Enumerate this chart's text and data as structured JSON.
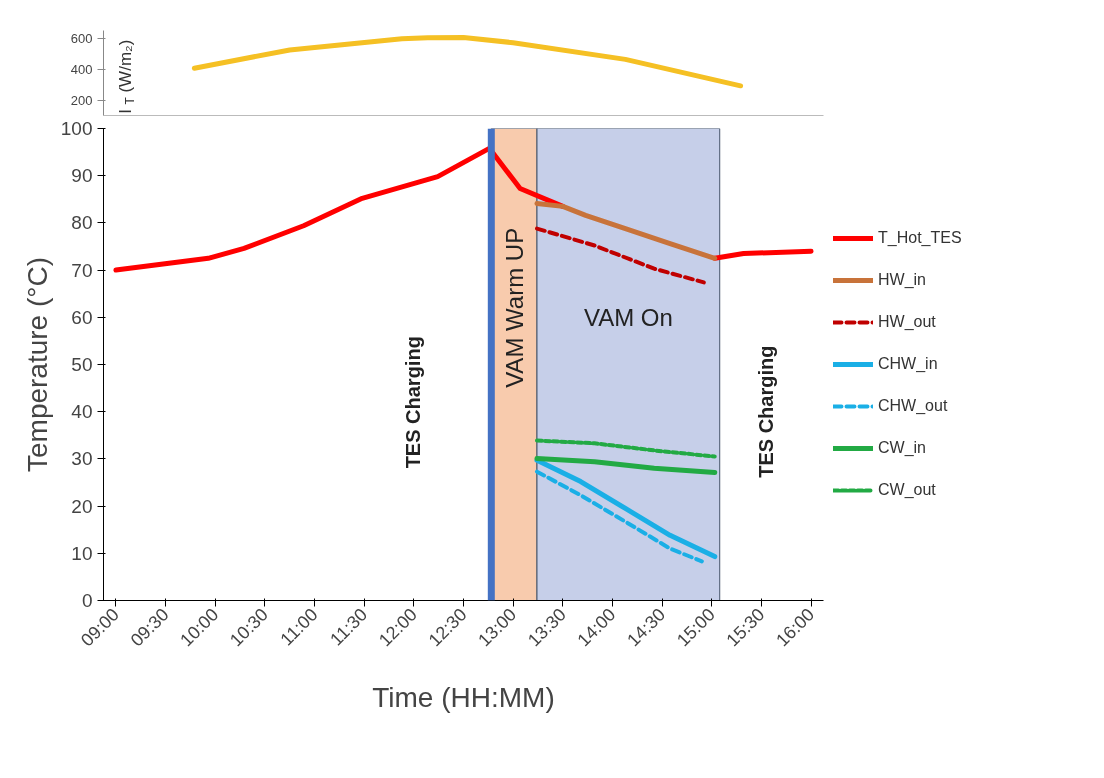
{
  "chart_data": [
    {
      "type": "line",
      "ylabel": "I$_{T}$ (W/m₂)",
      "x": [
        9.79,
        10.75,
        11.88,
        12.14,
        12.5,
        13.0,
        14.13,
        15.29
      ],
      "series": [
        {
          "color": "#f5c024",
          "values": [
            406,
            524,
            597,
            603,
            605,
            571,
            463,
            292
          ]
        }
      ],
      "xlim": [
        8.875,
        16.125
      ],
      "ylim": [
        100,
        650
      ],
      "yticks": [
        200,
        400,
        600
      ],
      "tick_labels": "y",
      "grid": false,
      "legend": false,
      "line_style": "solid"
    },
    {
      "type": "line",
      "xlabel": "Time (HH:MM)",
      "ylabel": "Temperature (°C)",
      "xlim": [
        8.875,
        16.125
      ],
      "ylim": [
        0,
        100
      ],
      "yticks": [
        0,
        10,
        20,
        30,
        40,
        50,
        60,
        70,
        80,
        90,
        100
      ],
      "xticks": [
        {
          "value": 9.0,
          "label": "09:00"
        },
        {
          "value": 9.5,
          "label": "09:30"
        },
        {
          "value": 10.0,
          "label": "10:00"
        },
        {
          "value": 10.5,
          "label": "10:30"
        },
        {
          "value": 11.0,
          "label": "11:00"
        },
        {
          "value": 11.5,
          "label": "11:30"
        },
        {
          "value": 12.0,
          "label": "12:00"
        },
        {
          "value": 12.5,
          "label": "12:30"
        },
        {
          "value": 13.0,
          "label": "13:00"
        },
        {
          "value": 13.5,
          "label": "13:30"
        },
        {
          "value": 14.0,
          "label": "14:00"
        },
        {
          "value": 14.5,
          "label": "14:30"
        },
        {
          "value": 15.0,
          "label": "15:00"
        },
        {
          "value": 15.5,
          "label": "15:30"
        },
        {
          "value": 16.0,
          "label": "16:00"
        }
      ],
      "grid": false,
      "legend": "right",
      "series": [
        {
          "name": "T_Hot_TES",
          "color": "#ff0000",
          "line_style": "solid",
          "x": [
            9.0,
            9.93,
            10.29,
            10.89,
            11.48,
            12.24,
            12.76,
            13.07,
            13.5,
            null,
            15.03,
            15.32,
            16.0
          ],
          "values": [
            70,
            72.5,
            74.6,
            79.4,
            85.2,
            89.8,
            95.8,
            87.3,
            83.5,
            null,
            72.5,
            73.5,
            74
          ]
        },
        {
          "name": "HW_in",
          "color": "#c8733a",
          "line_style": "solid",
          "x": [
            13.24,
            13.5,
            13.73,
            14.13,
            14.58,
            15.03
          ],
          "values": [
            84.1,
            83.5,
            81.6,
            78.8,
            75.6,
            72.5
          ]
        },
        {
          "name": "HW_out",
          "color": "#c00000",
          "line_style": "dashed",
          "x": [
            13.24,
            13.82,
            14.42,
            14.92
          ],
          "values": [
            78.8,
            75.2,
            70.3,
            67.4
          ]
        },
        {
          "name": "CHW_in",
          "color": "#1aafe6",
          "line_style": "solid",
          "x": [
            13.24,
            13.68,
            14.13,
            14.58,
            15.03
          ],
          "values": [
            29.7,
            25.2,
            19.5,
            13.8,
            9.3
          ]
        },
        {
          "name": "CHW_out",
          "color": "#1aafe6",
          "line_style": "dashed",
          "x": [
            13.24,
            13.68,
            14.13,
            14.58,
            14.9
          ],
          "values": [
            27.3,
            22.3,
            16.7,
            11.0,
            8.3
          ]
        },
        {
          "name": "CW_in",
          "color": "#22aa44",
          "line_style": "solid",
          "x": [
            13.24,
            13.82,
            14.42,
            15.03
          ],
          "values": [
            30.1,
            29.4,
            28.0,
            27.1
          ]
        },
        {
          "name": "CW_out",
          "color": "#22aa44",
          "line_style": "dotted",
          "x": [
            13.24,
            13.82,
            14.42,
            15.03
          ],
          "values": [
            33.9,
            33.3,
            31.8,
            30.5
          ]
        }
      ],
      "ref_lines": [
        {
          "axis": "x",
          "value": 12.78,
          "color": "#4472c4"
        }
      ],
      "bands": [
        {
          "axis": "x",
          "from": 12.78,
          "to": 13.24,
          "label": "VAM Warm UP",
          "color": "#f8cbad"
        },
        {
          "axis": "x",
          "from": 13.24,
          "to": 15.08,
          "label": "VAM On",
          "color": "#c6cfe9"
        }
      ],
      "annotations": [
        "TES Charging",
        "TES Charging"
      ]
    }
  ]
}
